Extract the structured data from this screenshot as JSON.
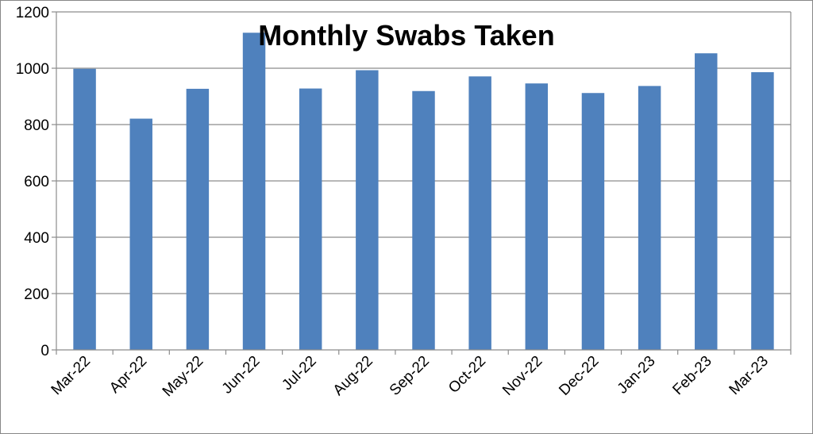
{
  "chart_data": {
    "type": "bar",
    "title": "Monthly Swabs Taken",
    "xlabel": "",
    "ylabel": "",
    "categories": [
      "Mar-22",
      "Apr-22",
      "May-22",
      "Jun-22",
      "Jul-22",
      "Aug-22",
      "Sep-22",
      "Oct-22",
      "Nov-22",
      "Dec-22",
      "Jan-23",
      "Feb-23",
      "Mar-23"
    ],
    "values": [
      998,
      821,
      927,
      1126,
      928,
      993,
      919,
      971,
      946,
      912,
      937,
      1053,
      986
    ],
    "ylim": [
      0,
      1200
    ],
    "yticks": [
      0,
      200,
      400,
      600,
      800,
      1000,
      1200
    ],
    "grid": true,
    "legend": "none",
    "bar_color": "#4F81BD",
    "grid_color": "#8C8C8C"
  }
}
